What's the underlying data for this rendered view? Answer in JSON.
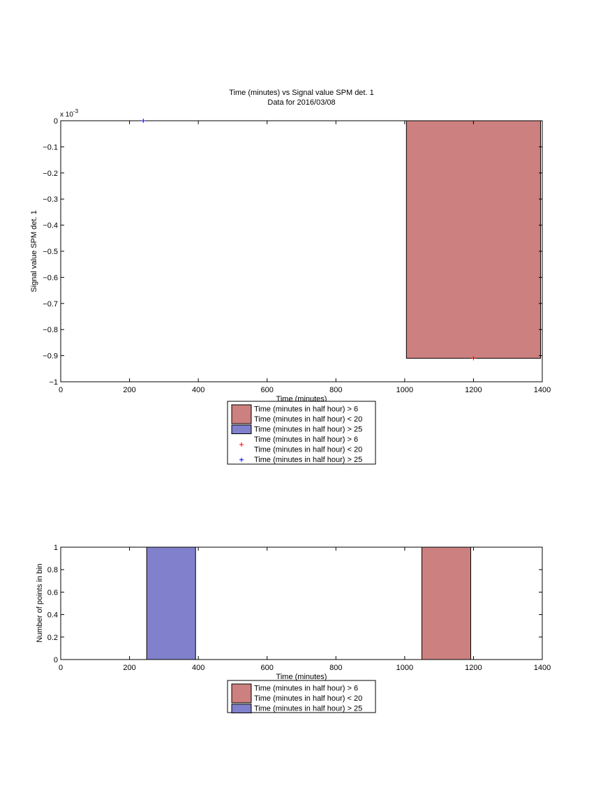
{
  "chart_data": [
    {
      "type": "bar",
      "title": "Time (minutes) vs Signal value SPM det. 1",
      "subtitle": "Data for 2016/03/08",
      "xlabel": "Time (minutes)",
      "ylabel": "Signal value SPM det. 1",
      "y_exponent_base": "x 10",
      "y_exponent_power": "-3",
      "xlim": [
        0,
        1400
      ],
      "ylim": [
        -1,
        0
      ],
      "xticks": [
        0,
        200,
        400,
        600,
        800,
        1000,
        1200,
        1400
      ],
      "yticks": [
        0,
        -0.1,
        -0.2,
        -0.3,
        -0.4,
        -0.5,
        -0.6,
        -0.7,
        -0.8,
        -0.9,
        -1
      ],
      "ytick_labels": [
        "0",
        "−0.1",
        "−0.2",
        "−0.3",
        "−0.4",
        "−0.5",
        "−0.6",
        "−0.7",
        "−0.8",
        "−0.9",
        "−1"
      ],
      "grid": false,
      "legend_placement": "below",
      "bars": [
        {
          "series": 0,
          "x_start": 1005,
          "x_end": 1395,
          "y_start": 0,
          "y_end": -0.91
        }
      ],
      "points": [
        {
          "series": 2,
          "x": 1200,
          "y": -0.91
        },
        {
          "series": 3,
          "x": 240,
          "y": 0
        }
      ],
      "legend": [
        {
          "kind": "patch",
          "color": "#cc807f",
          "lines": [
            "Time (minutes in half hour) > 6",
            "Time (minutes in half hour) < 20"
          ]
        },
        {
          "kind": "patch",
          "color": "#8080cc",
          "lines": [
            "Time (minutes in half hour) > 25"
          ]
        },
        {
          "kind": "marker",
          "color": "#ff0000",
          "lines": [
            "Time (minutes in half hour) > 6",
            "Time (minutes in half hour) < 20"
          ]
        },
        {
          "kind": "marker",
          "color": "#0000ff",
          "lines": [
            "Time (minutes in half hour) > 25"
          ]
        }
      ]
    },
    {
      "type": "bar",
      "title": "",
      "xlabel": "Time (minutes)",
      "ylabel": "Number of points in bin",
      "xlim": [
        0,
        1400
      ],
      "ylim": [
        0,
        1
      ],
      "xticks": [
        0,
        200,
        400,
        600,
        800,
        1000,
        1200,
        1400
      ],
      "yticks": [
        0,
        0.2,
        0.4,
        0.6,
        0.8,
        1
      ],
      "ytick_labels": [
        "0",
        "0.2",
        "0.4",
        "0.6",
        "0.8",
        "1"
      ],
      "grid": false,
      "legend_placement": "below",
      "bars": [
        {
          "series": 1,
          "x_start": 250,
          "x_end": 392,
          "y_start": 0,
          "y_end": 1
        },
        {
          "series": 0,
          "x_start": 1050,
          "x_end": 1192,
          "y_start": 0,
          "y_end": 1
        }
      ],
      "points": [],
      "legend": [
        {
          "kind": "patch",
          "color": "#cc807f",
          "lines": [
            "Time (minutes in half hour) > 6",
            "Time (minutes in half hour) < 20"
          ]
        },
        {
          "kind": "patch",
          "color": "#8080cc",
          "lines": [
            "Time (minutes in half hour) > 25"
          ]
        }
      ]
    }
  ],
  "colors": {
    "red_bar": "#cc807f",
    "blue_bar": "#8080cc",
    "red_marker": "#ff0000",
    "blue_marker": "#0000ff"
  }
}
